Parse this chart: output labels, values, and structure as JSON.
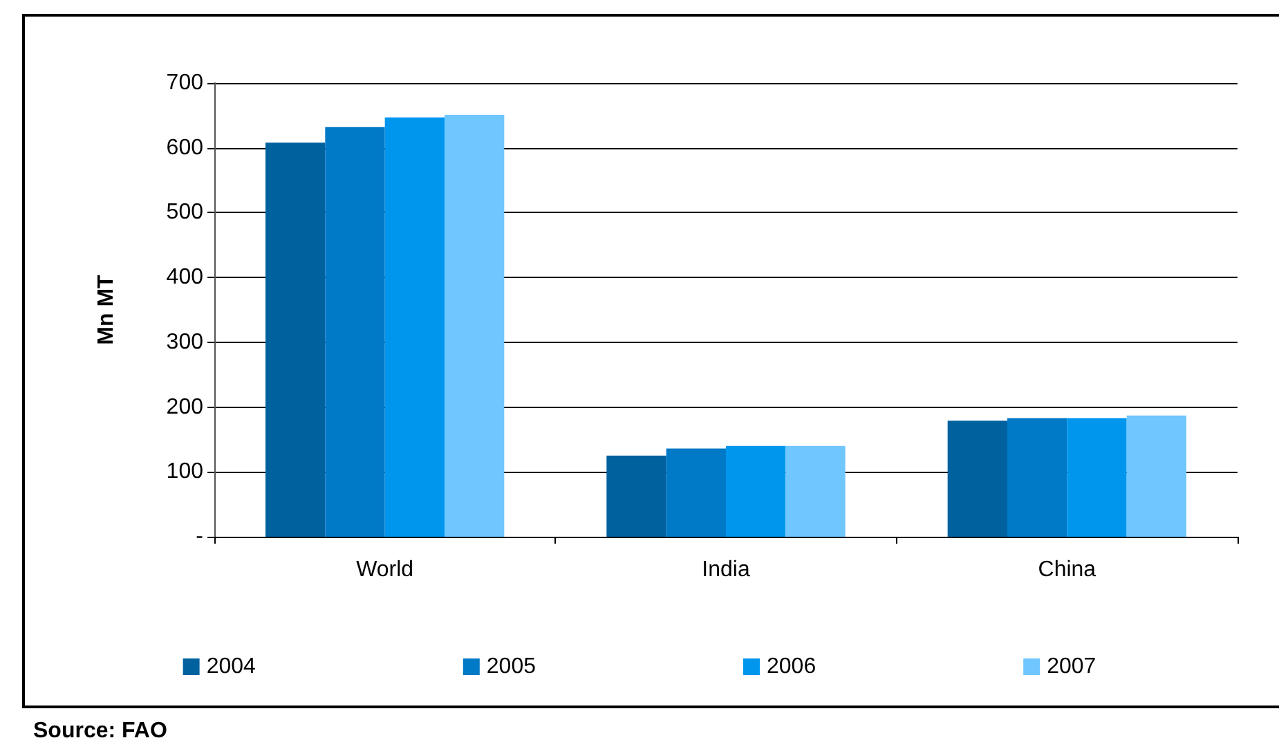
{
  "chart_data": {
    "type": "bar",
    "ylabel": "Mn MT",
    "categories": [
      "World",
      "India",
      "China"
    ],
    "series": [
      {
        "name": "2004",
        "color": "#00619f",
        "values": [
          608,
          125,
          179
        ]
      },
      {
        "name": "2005",
        "color": "#0079c6",
        "values": [
          632,
          136,
          183
        ]
      },
      {
        "name": "2006",
        "color": "#0096ee",
        "values": [
          647,
          140,
          183
        ]
      },
      {
        "name": "2007",
        "color": "#70c6ff",
        "values": [
          651,
          140,
          187
        ]
      }
    ],
    "ylim": [
      0,
      700
    ],
    "yticks": [
      {
        "value": 0,
        "label": "-"
      },
      100,
      200,
      300,
      400,
      500,
      600,
      700
    ],
    "grid": "y",
    "legend": "bottom",
    "annotations": [
      "Source: FAO"
    ]
  }
}
